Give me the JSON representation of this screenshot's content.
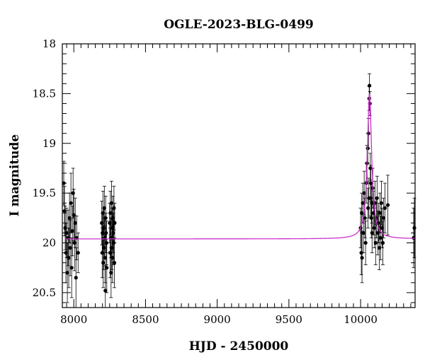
{
  "chart_data": {
    "type": "scatter",
    "title": "OGLE-2023-BLG-0499",
    "xlabel": "HJD - 2450000",
    "ylabel": "I magnitude",
    "xlim": [
      7920,
      10380
    ],
    "ylim": [
      20.65,
      18.0
    ],
    "y_inverted": true,
    "grid": false,
    "legend": "none",
    "x_ticks": [
      8000,
      8500,
      9000,
      9500,
      10000
    ],
    "x_tick_labels": [
      "8000",
      "8500",
      "9000",
      "9500",
      "10000"
    ],
    "y_ticks": [
      18,
      18.5,
      19,
      19.5,
      20,
      20.5
    ],
    "y_tick_labels": [
      "18",
      "18.5",
      "19",
      "19.5",
      "20",
      "20.5"
    ],
    "colors": {
      "data": "#000000",
      "model": "#cc33cc"
    },
    "series": [
      {
        "kind": "points_with_errorbars",
        "points": [
          [
            7930,
            19.4,
            0.22
          ],
          [
            7935,
            19.68,
            0.25
          ],
          [
            7940,
            19.85,
            0.22
          ],
          [
            7945,
            20.1,
            0.3
          ],
          [
            7950,
            19.9,
            0.25
          ],
          [
            7955,
            20.3,
            0.3
          ],
          [
            7960,
            19.95,
            0.28
          ],
          [
            7965,
            20.15,
            0.3
          ],
          [
            7970,
            19.75,
            0.25
          ],
          [
            7975,
            20.05,
            0.28
          ],
          [
            7980,
            19.6,
            0.3
          ],
          [
            7985,
            20.25,
            0.3
          ],
          [
            7990,
            19.88,
            0.25
          ],
          [
            7995,
            19.5,
            0.25
          ],
          [
            8000,
            19.72,
            0.26
          ],
          [
            8005,
            20.0,
            0.28
          ],
          [
            8010,
            19.8,
            0.25
          ],
          [
            8015,
            20.35,
            0.3
          ],
          [
            8020,
            19.95,
            0.22
          ],
          [
            8030,
            20.1,
            0.2
          ],
          [
            8195,
            19.8,
            0.22
          ],
          [
            8198,
            20.1,
            0.25
          ],
          [
            8200,
            19.9,
            0.2
          ],
          [
            8203,
            19.7,
            0.22
          ],
          [
            8205,
            20.2,
            0.25
          ],
          [
            8208,
            19.85,
            0.2
          ],
          [
            8210,
            20.05,
            0.22
          ],
          [
            8213,
            19.65,
            0.22
          ],
          [
            8215,
            19.95,
            0.2
          ],
          [
            8218,
            20.15,
            0.25
          ],
          [
            8220,
            20.48,
            0.25
          ],
          [
            8222,
            19.75,
            0.22
          ],
          [
            8225,
            19.9,
            0.2
          ],
          [
            8228,
            20.0,
            0.22
          ],
          [
            8230,
            20.25,
            0.25
          ],
          [
            8250,
            19.8,
            0.2
          ],
          [
            8253,
            20.1,
            0.25
          ],
          [
            8255,
            19.7,
            0.22
          ],
          [
            8258,
            19.95,
            0.2
          ],
          [
            8260,
            20.3,
            0.25
          ],
          [
            8263,
            19.6,
            0.22
          ],
          [
            8265,
            20.05,
            0.22
          ],
          [
            8268,
            19.85,
            0.2
          ],
          [
            8270,
            20.15,
            0.25
          ],
          [
            8272,
            19.75,
            0.22
          ],
          [
            8275,
            19.9,
            0.2
          ],
          [
            8278,
            20.0,
            0.22
          ],
          [
            8280,
            19.65,
            0.22
          ],
          [
            8283,
            20.2,
            0.25
          ],
          [
            8285,
            19.8,
            0.2
          ],
          [
            10000,
            19.85,
            0.2
          ],
          [
            10005,
            20.1,
            0.22
          ],
          [
            10008,
            19.7,
            0.2
          ],
          [
            10010,
            20.15,
            0.25
          ],
          [
            10015,
            19.6,
            0.2
          ],
          [
            10020,
            19.9,
            0.2
          ],
          [
            10025,
            19.5,
            0.22
          ],
          [
            10030,
            19.75,
            0.2
          ],
          [
            10035,
            20.0,
            0.22
          ],
          [
            10040,
            19.4,
            0.2
          ],
          [
            10045,
            19.2,
            0.18
          ],
          [
            10050,
            19.05,
            0.15
          ],
          [
            10052,
            19.65,
            0.2
          ],
          [
            10055,
            18.9,
            0.15
          ],
          [
            10058,
            19.55,
            0.2
          ],
          [
            10060,
            18.55,
            0.12
          ],
          [
            10062,
            18.42,
            0.12
          ],
          [
            10065,
            18.6,
            0.12
          ],
          [
            10068,
            19.25,
            0.15
          ],
          [
            10070,
            19.55,
            0.18
          ],
          [
            10072,
            19.4,
            0.18
          ],
          [
            10075,
            19.75,
            0.2
          ],
          [
            10078,
            19.6,
            0.2
          ],
          [
            10080,
            19.9,
            0.2
          ],
          [
            10085,
            19.45,
            0.2
          ],
          [
            10090,
            19.7,
            0.22
          ],
          [
            10095,
            19.85,
            0.2
          ],
          [
            10100,
            19.6,
            0.22
          ],
          [
            10105,
            20.0,
            0.22
          ],
          [
            10110,
            19.75,
            0.2
          ],
          [
            10115,
            19.55,
            0.22
          ],
          [
            10120,
            19.9,
            0.22
          ],
          [
            10125,
            19.8,
            0.2
          ],
          [
            10130,
            20.05,
            0.22
          ],
          [
            10135,
            19.7,
            0.2
          ],
          [
            10140,
            19.95,
            0.22
          ],
          [
            10145,
            19.6,
            0.22
          ],
          [
            10150,
            19.85,
            0.2
          ],
          [
            10155,
            20.0,
            0.22
          ],
          [
            10160,
            19.75,
            0.2
          ],
          [
            10170,
            19.65,
            0.25
          ],
          [
            10190,
            19.62,
            0.3
          ],
          [
            10370,
            19.95,
            0.3
          ],
          [
            10375,
            19.85,
            0.3
          ]
        ]
      },
      {
        "kind": "model_curve",
        "baseline": 19.96,
        "peak_time": 10062,
        "peak_mag": 18.5,
        "width": 18
      }
    ]
  }
}
